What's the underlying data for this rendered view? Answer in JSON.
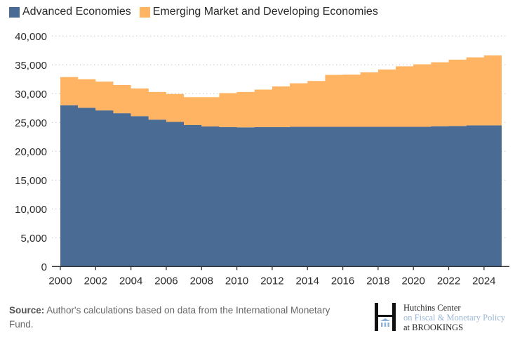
{
  "chart_data": {
    "type": "area",
    "stacked": true,
    "step": true,
    "title": "",
    "xlabel": "",
    "ylabel": "",
    "x": [
      2000,
      2001,
      2002,
      2003,
      2004,
      2005,
      2006,
      2007,
      2008,
      2009,
      2010,
      2011,
      2012,
      2013,
      2014,
      2015,
      2016,
      2017,
      2018,
      2019,
      2020,
      2021,
      2022,
      2023,
      2024
    ],
    "series": [
      {
        "name": "Advanced Economies",
        "color": "#4a6b94",
        "values": [
          28000,
          27550,
          27100,
          26600,
          26100,
          25500,
          25100,
          24550,
          24300,
          24200,
          24150,
          24200,
          24200,
          24250,
          24250,
          24250,
          24250,
          24250,
          24250,
          24250,
          24250,
          24350,
          24400,
          24500,
          24500
        ]
      },
      {
        "name": "Emerging Market and Developing Economies",
        "color": "#feb462",
        "values": [
          4880,
          4950,
          5000,
          4900,
          4800,
          4800,
          4850,
          4850,
          5100,
          5900,
          6150,
          6500,
          7050,
          7550,
          7950,
          9000,
          9050,
          9450,
          9950,
          10500,
          10850,
          11100,
          11500,
          11800,
          12150
        ]
      }
    ],
    "stack_totals": [
      32880,
      32500,
      32100,
      31500,
      30900,
      30300,
      29950,
      29400,
      29400,
      30100,
      30300,
      30700,
      31250,
      31800,
      32200,
      33250,
      33300,
      33700,
      34200,
      34750,
      35100,
      35450,
      35900,
      36300,
      36650
    ],
    "ylim": [
      0,
      40000
    ],
    "xlim": [
      2000,
      2025
    ],
    "yticks": [
      0,
      5000,
      10000,
      15000,
      20000,
      25000,
      30000,
      35000,
      40000
    ],
    "ytick_labels": [
      "0",
      "5,000",
      "10,000",
      "15,000",
      "20,000",
      "25,000",
      "30,000",
      "35,000",
      "40,000"
    ],
    "xticks": [
      2000,
      2002,
      2004,
      2006,
      2008,
      2010,
      2012,
      2014,
      2016,
      2018,
      2020,
      2022,
      2024
    ],
    "xtick_labels": [
      "2000",
      "2002",
      "2004",
      "2006",
      "2008",
      "2010",
      "2012",
      "2014",
      "2016",
      "2018",
      "2020",
      "2022",
      "2024"
    ],
    "grid": "horizontal-dotted",
    "legend_position": "top-left"
  },
  "legend": {
    "items": [
      {
        "label": "Advanced Economies",
        "color": "#4a6b94"
      },
      {
        "label": "Emerging Market and Developing Economies",
        "color": "#feb462"
      }
    ]
  },
  "footer": {
    "source_label": "Source:",
    "source_text": " Author's calculations based on data from the International Monetary Fund."
  },
  "logo": {
    "line1": "Hutchins Center",
    "line2": "on Fiscal & Monetary Policy",
    "line3": "at BROOKINGS"
  }
}
